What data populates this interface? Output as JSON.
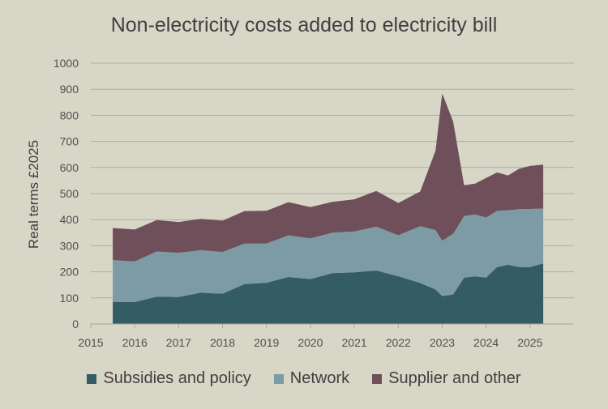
{
  "chart_data": {
    "type": "area",
    "stacked": true,
    "title": "Non-electricity costs added to electricity bill",
    "ylabel": "Real terms £2025",
    "xlabel": "",
    "ylim": [
      0,
      1000
    ],
    "xlim": [
      2015,
      2026
    ],
    "y_ticks": [
      0,
      100,
      200,
      300,
      400,
      500,
      600,
      700,
      800,
      900,
      1000
    ],
    "x_ticks": [
      2015,
      2016,
      2017,
      2018,
      2019,
      2020,
      2021,
      2022,
      2023,
      2024,
      2025
    ],
    "grid": true,
    "legend_position": "bottom",
    "x": [
      2015.5,
      2016.0,
      2016.5,
      2017.0,
      2017.5,
      2018.0,
      2018.5,
      2019.0,
      2019.5,
      2020.0,
      2020.5,
      2021.0,
      2021.5,
      2022.0,
      2022.5,
      2022.85,
      2023.0,
      2023.25,
      2023.5,
      2023.75,
      2024.0,
      2024.25,
      2024.5,
      2024.75,
      2025.0,
      2025.3
    ],
    "series": [
      {
        "name": "Subsidies and policy",
        "color": "#335d63",
        "values": [
          85,
          84,
          105,
          103,
          120,
          116,
          153,
          158,
          180,
          172,
          195,
          198,
          205,
          183,
          157,
          132,
          107,
          113,
          178,
          183,
          178,
          218,
          227,
          218,
          218,
          232
        ]
      },
      {
        "name": "Network",
        "color": "#7d9ba4",
        "values": [
          160,
          156,
          173,
          170,
          163,
          160,
          155,
          150,
          160,
          156,
          155,
          157,
          168,
          157,
          218,
          228,
          212,
          233,
          236,
          237,
          230,
          216,
          209,
          222,
          223,
          211
        ]
      },
      {
        "name": "Supplier and other",
        "color": "#6e4f5a",
        "values": [
          123,
          122,
          120,
          118,
          120,
          120,
          125,
          126,
          127,
          120,
          118,
          123,
          137,
          124,
          133,
          305,
          565,
          430,
          118,
          118,
          152,
          147,
          133,
          155,
          165,
          168
        ]
      }
    ]
  }
}
